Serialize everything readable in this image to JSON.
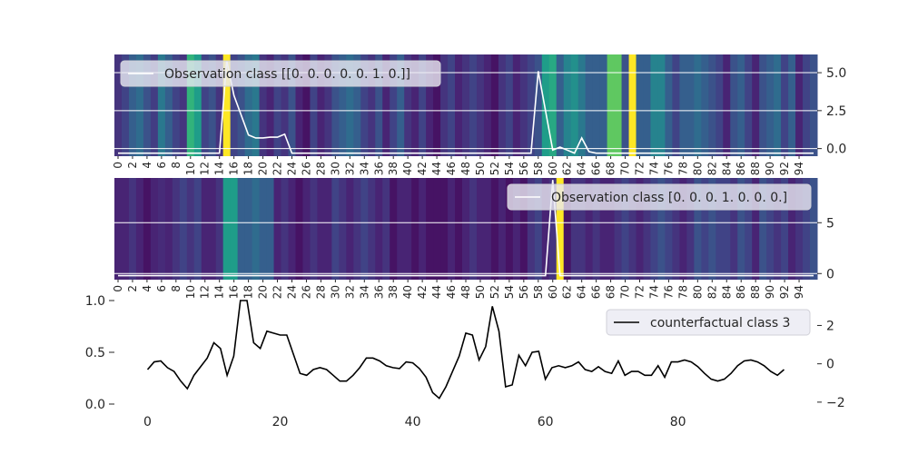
{
  "chart_data": [
    {
      "panel": "top",
      "type": "heatmap",
      "legend": "Observation class [[0. 0. 0. 0. 0. 1. 0.]]",
      "legend_position": "upper left",
      "yticks": [
        0.0,
        2.5,
        5.0
      ],
      "ytick_labels": [
        "0.0",
        "2.5",
        "5.0"
      ],
      "ylim": [
        -0.5,
        6.2
      ],
      "n_columns": 97,
      "xtick_labels": [
        "0",
        "2",
        "4",
        "6",
        "8",
        "10",
        "12",
        "14",
        "16",
        "18",
        "20",
        "22",
        "24",
        "26",
        "28",
        "30",
        "32",
        "34",
        "36",
        "38",
        "40",
        "42",
        "44",
        "46",
        "48",
        "50",
        "52",
        "54",
        "56",
        "58",
        "60",
        "62",
        "64",
        "66",
        "68",
        "70",
        "72",
        "74",
        "76",
        "78",
        "80",
        "82",
        "84",
        "86",
        "88",
        "90",
        "92",
        "94"
      ],
      "heat_values": [
        0.15,
        0.2,
        0.3,
        0.35,
        0.25,
        0.18,
        0.4,
        0.3,
        0.2,
        0.15,
        0.65,
        0.55,
        0.2,
        0.25,
        0.15,
        1.0,
        0.2,
        0.25,
        0.35,
        0.4,
        0.15,
        0.1,
        0.2,
        0.15,
        0.25,
        0.1,
        0.05,
        0.2,
        0.1,
        0.15,
        0.25,
        0.3,
        0.35,
        0.3,
        0.2,
        0.15,
        0.25,
        0.1,
        0.2,
        0.3,
        0.15,
        0.1,
        0.2,
        0.1,
        0.05,
        0.15,
        0.2,
        0.1,
        0.15,
        0.2,
        0.15,
        0.1,
        0.05,
        0.15,
        0.2,
        0.1,
        0.15,
        0.2,
        0.25,
        0.55,
        0.6,
        0.3,
        0.45,
        0.5,
        0.4,
        0.3,
        0.3,
        0.3,
        0.75,
        0.75,
        0.25,
        1.0,
        0.3,
        0.3,
        0.45,
        0.45,
        0.3,
        0.2,
        0.3,
        0.3,
        0.35,
        0.3,
        0.25,
        0.2,
        0.1,
        0.25,
        0.3,
        0.2,
        0.1,
        0.25,
        0.3,
        0.35,
        0.2,
        0.3,
        0.1,
        0.2,
        0.25
      ],
      "line_values": [
        -0.3,
        -0.3,
        -0.3,
        -0.3,
        -0.3,
        -0.3,
        -0.3,
        -0.3,
        -0.3,
        -0.3,
        -0.3,
        -0.3,
        -0.3,
        -0.3,
        -0.3,
        5.8,
        3.5,
        2.2,
        0.9,
        0.7,
        0.7,
        0.75,
        0.75,
        0.95,
        -0.3,
        -0.3,
        -0.3,
        -0.3,
        -0.3,
        -0.3,
        -0.3,
        -0.3,
        -0.3,
        -0.3,
        -0.3,
        -0.3,
        -0.3,
        -0.3,
        -0.3,
        -0.3,
        -0.3,
        -0.3,
        -0.3,
        -0.3,
        -0.3,
        -0.3,
        -0.3,
        -0.3,
        -0.3,
        -0.3,
        -0.3,
        -0.3,
        -0.3,
        -0.3,
        -0.3,
        -0.3,
        -0.3,
        -0.3,
        5.1,
        2.5,
        -0.1,
        0.1,
        -0.1,
        -0.3,
        0.7,
        -0.2,
        -0.3,
        -0.3,
        -0.3,
        -0.3,
        -0.3,
        -0.3,
        -0.3,
        -0.3,
        -0.3,
        -0.3,
        -0.3,
        -0.3,
        -0.3,
        -0.3,
        -0.3,
        -0.3,
        -0.3,
        -0.3,
        -0.3,
        -0.3,
        -0.3,
        -0.3,
        -0.3,
        -0.3,
        -0.3,
        -0.3,
        -0.3,
        -0.3,
        -0.3,
        -0.3,
        -0.3
      ]
    },
    {
      "panel": "middle",
      "type": "heatmap",
      "legend": "Observation class [0. 0. 0. 1. 0. 0. 0.]",
      "legend_position": "upper right",
      "yticks": [
        0,
        5
      ],
      "ytick_labels": [
        "0",
        "5"
      ],
      "ylim": [
        -0.6,
        9.4
      ],
      "n_columns": 97,
      "xtick_labels": [
        "0",
        "2",
        "4",
        "6",
        "8",
        "10",
        "12",
        "14",
        "16",
        "18",
        "20",
        "22",
        "24",
        "26",
        "28",
        "30",
        "32",
        "34",
        "36",
        "38",
        "40",
        "42",
        "44",
        "46",
        "48",
        "50",
        "52",
        "54",
        "56",
        "58",
        "60",
        "62",
        "64",
        "66",
        "68",
        "70",
        "72",
        "74",
        "76",
        "78",
        "80",
        "82",
        "84",
        "86",
        "88",
        "90",
        "92",
        "94"
      ],
      "heat_values": [
        0.1,
        0.1,
        0.15,
        0.1,
        0.05,
        0.1,
        0.12,
        0.1,
        0.15,
        0.2,
        0.15,
        0.2,
        0.1,
        0.1,
        0.15,
        0.55,
        0.55,
        0.3,
        0.3,
        0.35,
        0.3,
        0.3,
        0.1,
        0.15,
        0.1,
        0.05,
        0.1,
        0.15,
        0.1,
        0.1,
        0.2,
        0.15,
        0.1,
        0.15,
        0.2,
        0.15,
        0.1,
        0.15,
        0.05,
        0.1,
        0.1,
        0.05,
        0.1,
        0.05,
        0.05,
        0.05,
        0.1,
        0.05,
        0.1,
        0.15,
        0.1,
        0.1,
        0.05,
        0.1,
        0.05,
        0.1,
        0.05,
        0.15,
        0.2,
        0.1,
        0.15,
        1.0,
        0.05,
        0.15,
        0.15,
        0.1,
        0.15,
        0.1,
        0.1,
        0.15,
        0.2,
        0.15,
        0.1,
        0.15,
        0.2,
        0.25,
        0.2,
        0.15,
        0.1,
        0.15,
        0.25,
        0.2,
        0.25,
        0.2,
        0.2,
        0.15,
        0.25,
        0.2,
        0.1,
        0.25,
        0.2,
        0.15,
        0.2,
        0.1,
        0.15,
        0.2,
        0.25
      ],
      "line_values": [
        -0.2,
        -0.2,
        -0.2,
        -0.2,
        -0.2,
        -0.2,
        -0.2,
        -0.2,
        -0.2,
        -0.2,
        -0.2,
        -0.2,
        -0.2,
        -0.2,
        -0.2,
        -0.2,
        -0.2,
        -0.2,
        -0.2,
        -0.2,
        -0.2,
        -0.2,
        -0.2,
        -0.2,
        -0.2,
        -0.2,
        -0.2,
        -0.2,
        -0.2,
        -0.2,
        -0.2,
        -0.2,
        -0.2,
        -0.2,
        -0.2,
        -0.2,
        -0.2,
        -0.2,
        -0.2,
        -0.2,
        -0.2,
        -0.2,
        -0.2,
        -0.2,
        -0.2,
        -0.2,
        -0.2,
        -0.2,
        -0.2,
        -0.2,
        -0.2,
        -0.2,
        -0.2,
        -0.2,
        -0.2,
        -0.2,
        -0.2,
        -0.2,
        -0.2,
        -0.2,
        9.2,
        -0.2,
        -0.2,
        -0.2,
        -0.2,
        -0.2,
        -0.2,
        -0.2,
        -0.2,
        -0.2,
        -0.2,
        -0.2,
        -0.2,
        -0.2,
        -0.2,
        -0.2,
        -0.2,
        -0.2,
        -0.2,
        -0.2,
        -0.2,
        -0.2,
        -0.2,
        -0.2,
        -0.2,
        -0.2,
        -0.2,
        -0.2,
        -0.2,
        -0.2,
        -0.2,
        -0.2,
        -0.2,
        -0.2,
        -0.2,
        -0.2,
        -0.2
      ]
    },
    {
      "panel": "bottom",
      "type": "line",
      "series": [
        {
          "name": "counterfactual class 3",
          "x_start": 0,
          "values": [
            -0.3,
            0.1,
            0.15,
            -0.2,
            -0.4,
            -0.9,
            -1.3,
            -0.6,
            -0.15,
            0.3,
            1.1,
            0.8,
            -0.6,
            0.4,
            3.3,
            3.3,
            1.1,
            0.8,
            1.7,
            1.6,
            1.5,
            1.5,
            0.5,
            -0.5,
            -0.6,
            -0.3,
            -0.2,
            -0.3,
            -0.6,
            -0.9,
            -0.9,
            -0.6,
            -0.2,
            0.3,
            0.3,
            0.15,
            -0.1,
            -0.2,
            -0.25,
            0.1,
            0.05,
            -0.25,
            -0.7,
            -1.5,
            -1.8,
            -1.2,
            -0.4,
            0.4,
            1.6,
            1.5,
            0.2,
            0.9,
            3.0,
            1.7,
            -1.2,
            -1.1,
            0.45,
            -0.1,
            0.6,
            0.65,
            -0.8,
            -0.2,
            -0.1,
            -0.2,
            -0.1,
            0.1,
            -0.3,
            -0.4,
            -0.15,
            -0.4,
            -0.5,
            0.15,
            -0.6,
            -0.4,
            -0.4,
            -0.6,
            -0.6,
            -0.1,
            -0.7,
            0.1,
            0.1,
            0.2,
            0.1,
            -0.15,
            -0.5,
            -0.8,
            -0.9,
            -0.8,
            -0.5,
            -0.1,
            0.15,
            0.2,
            0.1,
            -0.1,
            -0.4,
            -0.6,
            -0.3
          ]
        }
      ],
      "legend_position": "upper right",
      "left_axis": {
        "ylim": [
          0.0,
          1.0
        ],
        "ticks": [
          0.0,
          0.5,
          1.0
        ],
        "tick_labels": [
          "0.0",
          "0.5",
          "1.0"
        ]
      },
      "right_axis": {
        "ylim": [
          -2.1,
          3.3
        ],
        "ticks": [
          -2,
          0,
          2
        ],
        "tick_labels": [
          "−2",
          "0",
          "2"
        ]
      },
      "xlim": [
        -5,
        101
      ],
      "xticks": [
        0,
        20,
        40,
        60,
        80
      ],
      "xtick_labels": [
        "0",
        "20",
        "40",
        "60",
        "80"
      ]
    }
  ]
}
